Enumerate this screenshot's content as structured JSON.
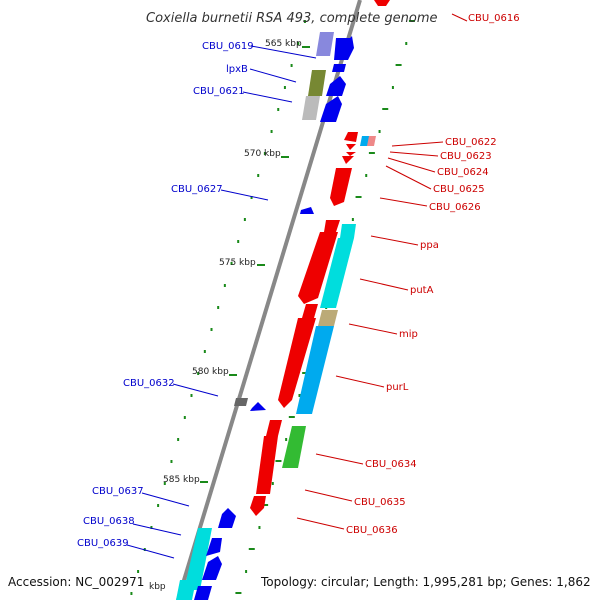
{
  "title": "Coxiella burnetii RSA 493, complete genome",
  "colors": {
    "backbone": "#888888",
    "forward_label": "#0000cc",
    "reverse_label": "#cc0000",
    "tick_green": "#1a8a1a",
    "gene_blue": "#0000ee",
    "gene_red": "#ee0000",
    "gene_cyan": "#00dddd",
    "gene_skyblue": "#00aaee",
    "gene_green": "#33bb33",
    "gene_olive": "#778833",
    "gene_khaki": "#bbaa77",
    "gene_lavender": "#8888dd",
    "gene_silver": "#bbbbbb",
    "gene_grey": "#666666",
    "gene_pink": "#ee8888"
  },
  "kbp_labels": [
    "565 kbp",
    "570 kbp",
    "575 kbp",
    "580 kbp",
    "585 kbp",
    "kbp"
  ],
  "forward_labels": [
    "CBU_0619",
    "lpxB",
    "CBU_0621",
    "CBU_0627",
    "CBU_0632",
    "CBU_0637",
    "CBU_0638",
    "CBU_0639"
  ],
  "reverse_labels": [
    "CBU_0616",
    "CBU_0622",
    "CBU_0623",
    "CBU_0624",
    "CBU_0625",
    "CBU_0626",
    "ppa",
    "putA",
    "mip",
    "purL",
    "CBU_0634",
    "CBU_0635",
    "CBU_0636"
  ],
  "footer": {
    "accession": "Accession: NC_002971",
    "topology": "Topology: circular; Length: 1,995,281 bp; Genes: 1,862"
  }
}
